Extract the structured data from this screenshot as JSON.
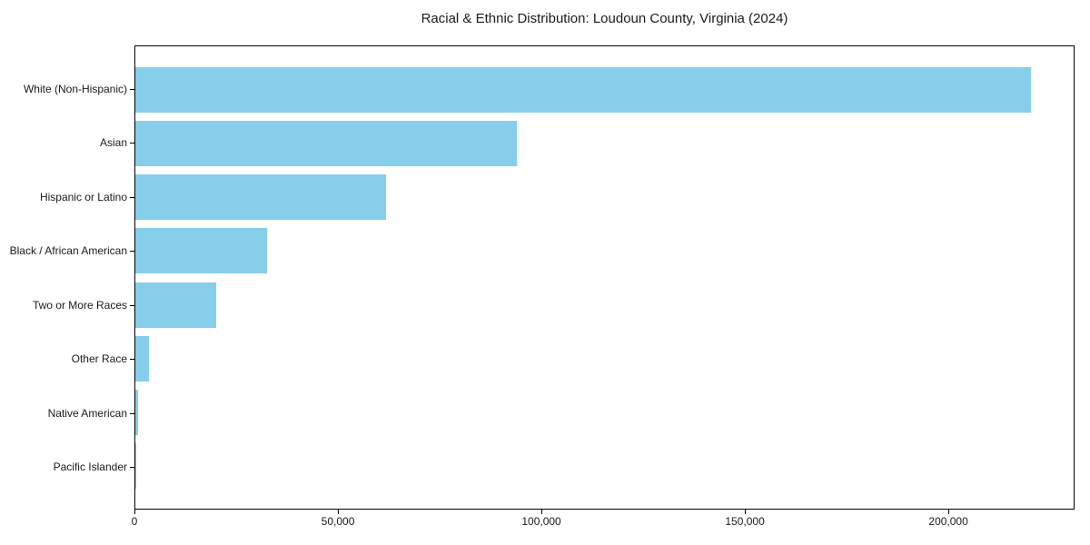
{
  "chart_data": {
    "type": "bar",
    "orientation": "horizontal",
    "title": "Racial & Ethnic Distribution: Loudoun County, Virginia (2024)",
    "categories": [
      "White (Non-Hispanic)",
      "Asian",
      "Hispanic or Latino",
      "Black / African American",
      "Two or More Races",
      "Other Race",
      "Native American",
      "Pacific Islander"
    ],
    "values": [
      220500,
      94000,
      61700,
      32500,
      20000,
      3300,
      700,
      300
    ],
    "xlabel": "",
    "ylabel": "",
    "xlim": [
      0,
      231000
    ],
    "x_ticks": [
      0,
      50000,
      100000,
      150000,
      200000
    ],
    "x_tick_labels": [
      "0",
      "50,000",
      "100,000",
      "150,000",
      "200,000"
    ],
    "bar_color": "#87CEEB",
    "grid": false,
    "legend": false,
    "sort_order": "descending"
  }
}
